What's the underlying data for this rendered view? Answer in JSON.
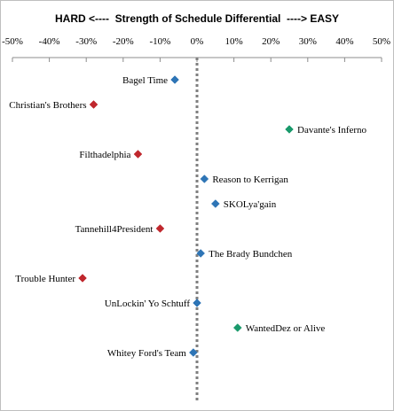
{
  "chart_data": {
    "type": "scatter",
    "title": "HARD <----  Strength of Schedule Differential  ----> EASY",
    "xlabel": "",
    "ylabel": "",
    "xlim": [
      -0.5,
      0.5
    ],
    "x_ticks": [
      "-50%",
      "-40%",
      "-30%",
      "-20%",
      "-10%",
      "0%",
      "10%",
      "20%",
      "30%",
      "40%",
      "50%"
    ],
    "x_tick_values": [
      -0.5,
      -0.4,
      -0.3,
      -0.2,
      -0.1,
      0,
      0.1,
      0.2,
      0.3,
      0.4,
      0.5
    ],
    "zero_line": "dotted",
    "grid": false,
    "legend": "none",
    "colors": {
      "hard": "#c0272d",
      "neutral": "#2e75b6",
      "easy": "#1a9a6c"
    },
    "points": [
      {
        "team": "Bagel Time",
        "x": -0.06,
        "color": "#2e75b6",
        "label_side": "left"
      },
      {
        "team": "Christian's Brothers",
        "x": -0.28,
        "color": "#c0272d",
        "label_side": "left"
      },
      {
        "team": "Davante's Inferno",
        "x": 0.25,
        "color": "#1a9a6c",
        "label_side": "right"
      },
      {
        "team": "Filthadelphia",
        "x": -0.16,
        "color": "#c0272d",
        "label_side": "left"
      },
      {
        "team": "Reason to Kerrigan",
        "x": 0.02,
        "color": "#2e75b6",
        "label_side": "right"
      },
      {
        "team": "SKOLya'gain",
        "x": 0.05,
        "color": "#2e75b6",
        "label_side": "right"
      },
      {
        "team": "Tannehill4President",
        "x": -0.1,
        "color": "#c0272d",
        "label_side": "left"
      },
      {
        "team": "The Brady Bundchen",
        "x": 0.01,
        "color": "#2e75b6",
        "label_side": "right"
      },
      {
        "team": "Trouble Hunter",
        "x": -0.31,
        "color": "#c0272d",
        "label_side": "left"
      },
      {
        "team": "UnLockin' Yo Schtuff",
        "x": 0.0,
        "color": "#2e75b6",
        "label_side": "left"
      },
      {
        "team": "WantedDez or Alive",
        "x": 0.11,
        "color": "#1a9a6c",
        "label_side": "right"
      },
      {
        "team": "Whitey Ford's Team",
        "x": -0.01,
        "color": "#2e75b6",
        "label_side": "left"
      }
    ]
  }
}
